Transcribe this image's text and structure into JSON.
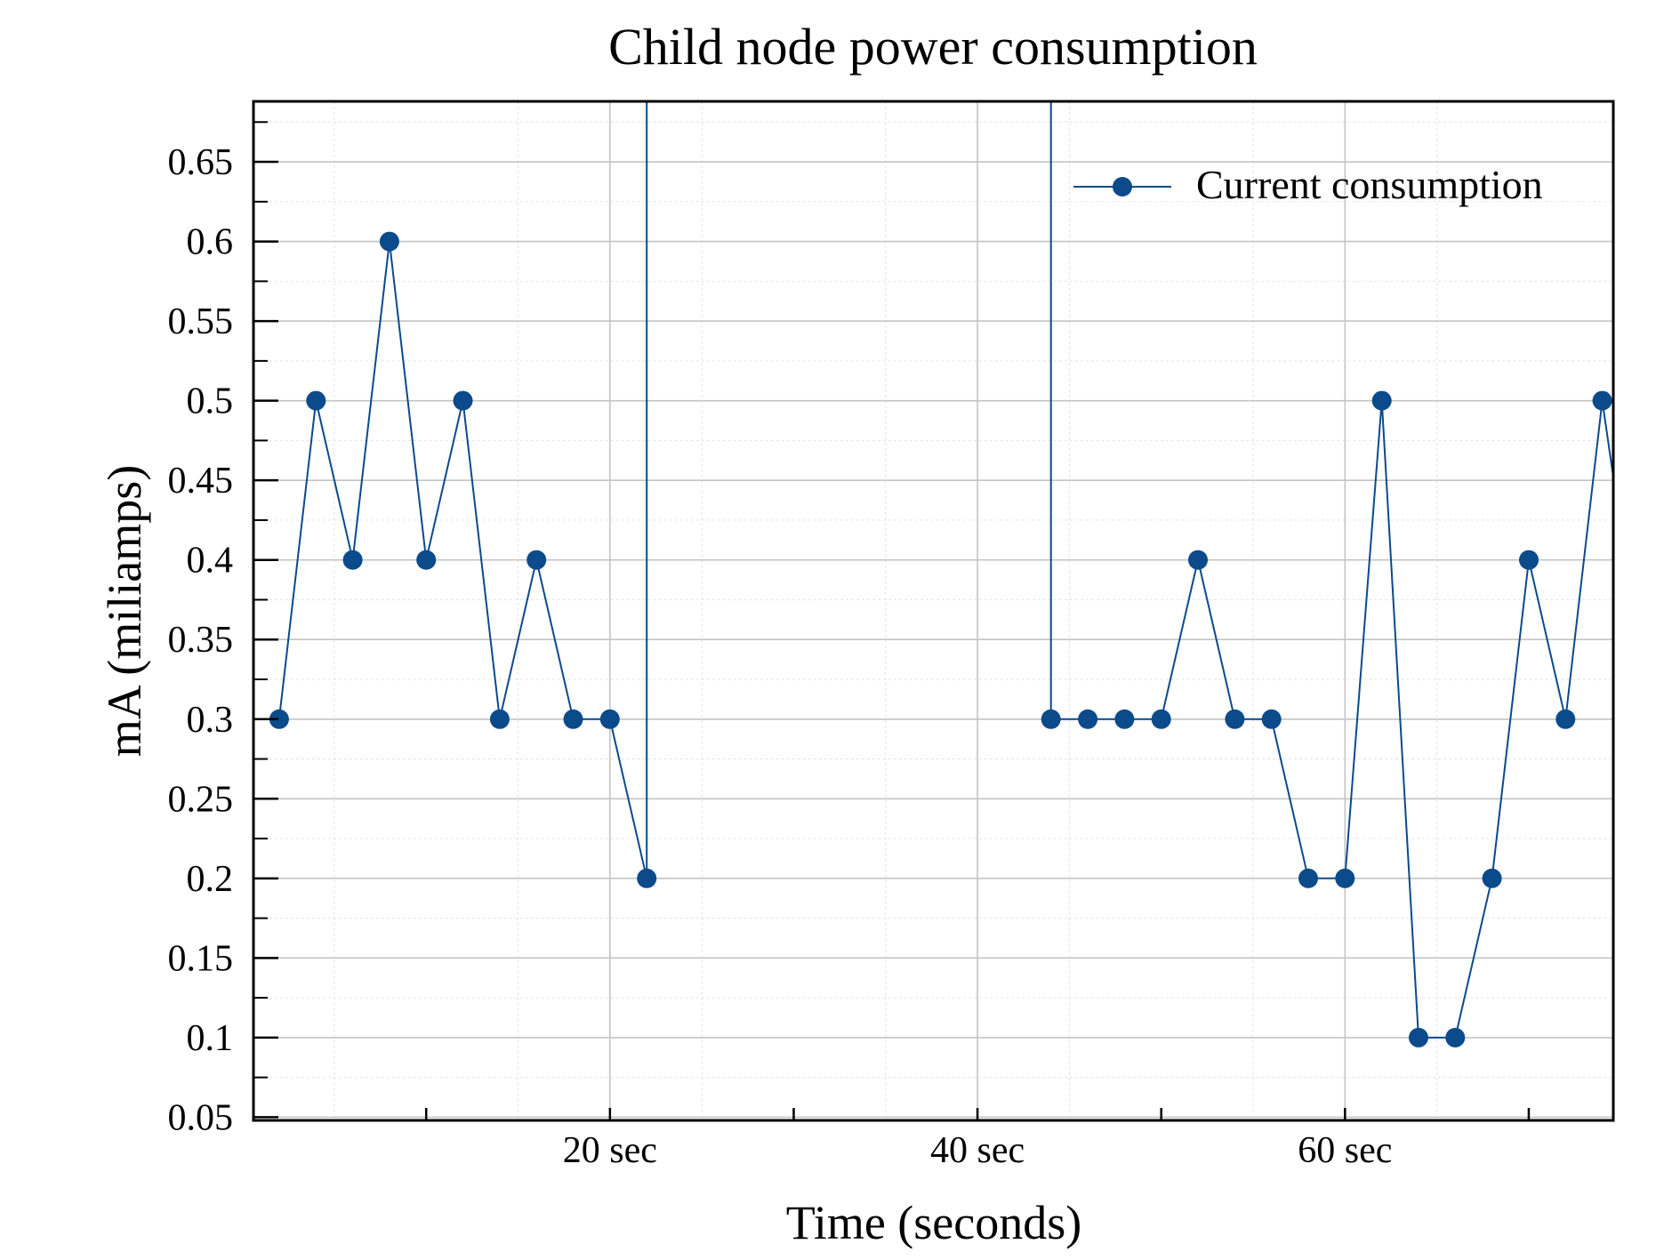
{
  "chart_data": {
    "type": "line",
    "title": "Child node power consumption",
    "xlabel": "Time (seconds)",
    "ylabel": "mA (miliamps)",
    "xlim": [
      0.6,
      74.6
    ],
    "ylim": [
      0.048,
      0.688
    ],
    "x_ticks_major": [
      10,
      20,
      30,
      40,
      50,
      60,
      70
    ],
    "x_tick_labels": [
      {
        "x": 20,
        "label": "20 sec"
      },
      {
        "x": 40,
        "label": "40 sec"
      },
      {
        "x": 60,
        "label": "60 sec"
      }
    ],
    "y_ticks_major": [
      0.05,
      0.1,
      0.15,
      0.2,
      0.25,
      0.3,
      0.35,
      0.4,
      0.45,
      0.5,
      0.55,
      0.6,
      0.65
    ],
    "y_tick_labels": [
      "0.05",
      "0.1",
      "0.15",
      "0.2",
      "0.25",
      "0.3",
      "0.35",
      "0.4",
      "0.45",
      "0.5",
      "0.55",
      "0.6",
      "0.65"
    ],
    "grid": true,
    "legend_position": "top-right",
    "series": [
      {
        "name": "Current consumption",
        "color": "#0b4a8b",
        "marker": "circle",
        "segments": [
          [
            {
              "x": 2,
              "y": 0.3
            },
            {
              "x": 4,
              "y": 0.5
            },
            {
              "x": 6,
              "y": 0.4
            },
            {
              "x": 8,
              "y": 0.6
            },
            {
              "x": 10,
              "y": 0.4
            },
            {
              "x": 12,
              "y": 0.5
            },
            {
              "x": 14,
              "y": 0.3
            },
            {
              "x": 16,
              "y": 0.4
            },
            {
              "x": 18,
              "y": 0.3
            },
            {
              "x": 20,
              "y": 0.3
            },
            {
              "x": 22,
              "y": 0.2
            },
            {
              "x": 22,
              "y": 0.72,
              "marker": false
            }
          ],
          [
            {
              "x": 44,
              "y": 0.72,
              "marker": false
            },
            {
              "x": 44,
              "y": 0.3
            },
            {
              "x": 46,
              "y": 0.3
            },
            {
              "x": 48,
              "y": 0.3
            },
            {
              "x": 50,
              "y": 0.3
            },
            {
              "x": 52,
              "y": 0.4
            },
            {
              "x": 54,
              "y": 0.3
            },
            {
              "x": 56,
              "y": 0.3
            },
            {
              "x": 58,
              "y": 0.2
            },
            {
              "x": 60,
              "y": 0.2
            },
            {
              "x": 62,
              "y": 0.5
            },
            {
              "x": 64,
              "y": 0.1
            },
            {
              "x": 66,
              "y": 0.1
            },
            {
              "x": 68,
              "y": 0.2
            },
            {
              "x": 70,
              "y": 0.4
            },
            {
              "x": 72,
              "y": 0.3
            },
            {
              "x": 74,
              "y": 0.5
            },
            {
              "x": 75,
              "y": 0.42,
              "marker": false
            }
          ]
        ]
      }
    ]
  }
}
